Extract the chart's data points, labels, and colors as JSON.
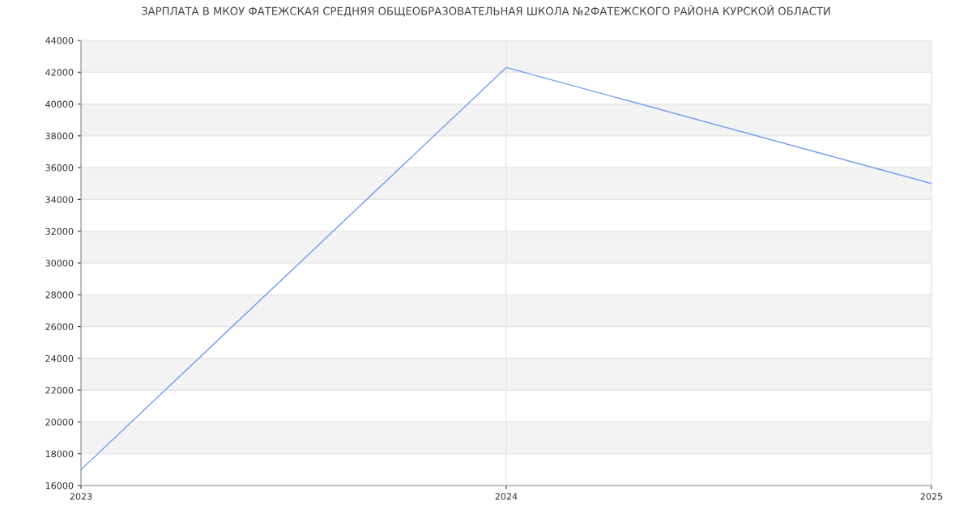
{
  "chart_data": {
    "type": "line",
    "title": "ЗАРПЛАТА В МКОУ ФАТЕЖСКАЯ СРЕДНЯЯ ОБЩЕОБРАЗОВАТЕЛЬНАЯ ШКОЛА №2ФАТЕЖСКОГО РАЙОНА КУРСКОЙ ОБЛАСТИ",
    "x": [
      2023,
      2024,
      2025
    ],
    "series": [
      {
        "color": "#6f9cf0",
        "values": [
          17000,
          42300,
          35000
        ]
      }
    ],
    "xlim": [
      2023,
      2025
    ],
    "xticks": [
      2023,
      2024,
      2025
    ],
    "ylim": [
      16000,
      44000
    ],
    "yticks": [
      16000,
      18000,
      20000,
      22000,
      24000,
      26000,
      28000,
      30000,
      32000,
      34000,
      36000,
      38000,
      40000,
      42000,
      44000
    ],
    "grid": true,
    "marker": "none",
    "line_style": "solid"
  }
}
